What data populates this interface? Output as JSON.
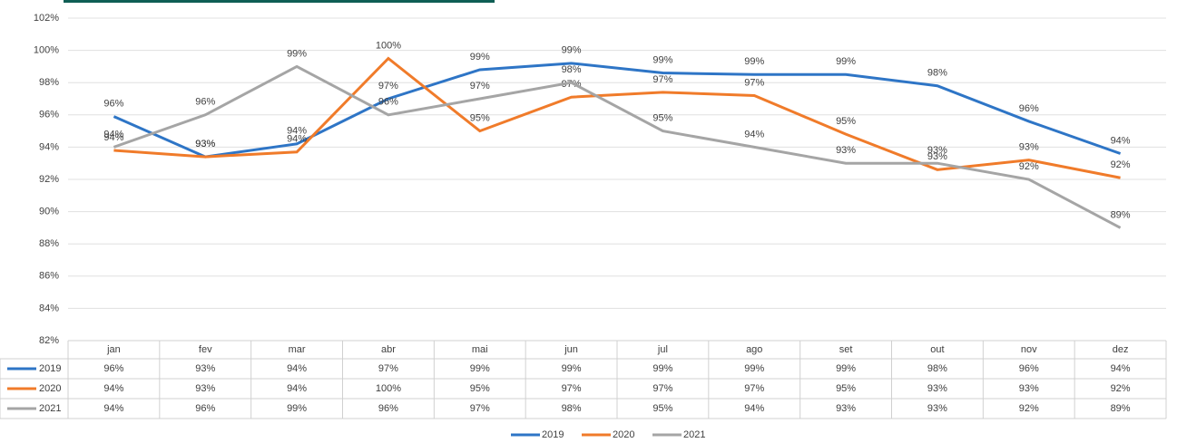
{
  "chart_data": {
    "type": "line",
    "categories": [
      "jan",
      "fev",
      "mar",
      "abr",
      "mai",
      "jun",
      "jul",
      "ago",
      "set",
      "out",
      "nov",
      "dez"
    ],
    "series": [
      {
        "name": "2019",
        "color": "#2e75c6",
        "values": [
          95.9,
          93.4,
          94.2,
          97.0,
          98.8,
          99.2,
          98.6,
          98.5,
          98.5,
          97.8,
          95.6,
          93.6
        ],
        "value_labels": [
          "96%",
          "93%",
          "94%",
          "97%",
          "99%",
          "99%",
          "99%",
          "99%",
          "99%",
          "98%",
          "96%",
          "94%"
        ]
      },
      {
        "name": "2020",
        "color": "#f07b2a",
        "values": [
          93.8,
          93.4,
          93.7,
          99.5,
          95.0,
          97.1,
          97.4,
          97.2,
          94.8,
          92.6,
          93.2,
          92.1
        ],
        "value_labels": [
          "94%",
          "93%",
          "94%",
          "100%",
          "95%",
          "97%",
          "97%",
          "97%",
          "95%",
          "93%",
          "93%",
          "92%"
        ]
      },
      {
        "name": "2021",
        "color": "#a5a5a5",
        "values": [
          94,
          96,
          99,
          96,
          97,
          98,
          95,
          94,
          93,
          93,
          92,
          89
        ],
        "value_labels": [
          "94%",
          "96%",
          "99%",
          "96%",
          "97%",
          "98%",
          "95%",
          "94%",
          "93%",
          "93%",
          "92%",
          "89%"
        ]
      }
    ],
    "ylim": [
      82,
      102
    ],
    "yticks": [
      {
        "value": 82,
        "label": "82%"
      },
      {
        "value": 84,
        "label": "84%"
      },
      {
        "value": 86,
        "label": "86%"
      },
      {
        "value": 88,
        "label": "88%"
      },
      {
        "value": 90,
        "label": "90%"
      },
      {
        "value": 92,
        "label": "92%"
      },
      {
        "value": 94,
        "label": "94%"
      },
      {
        "value": 96,
        "label": "96%"
      },
      {
        "value": 98,
        "label": "98%"
      },
      {
        "value": 100,
        "label": "100%"
      },
      {
        "value": 102,
        "label": "102%"
      }
    ],
    "grid": true,
    "legend": "bottom"
  }
}
